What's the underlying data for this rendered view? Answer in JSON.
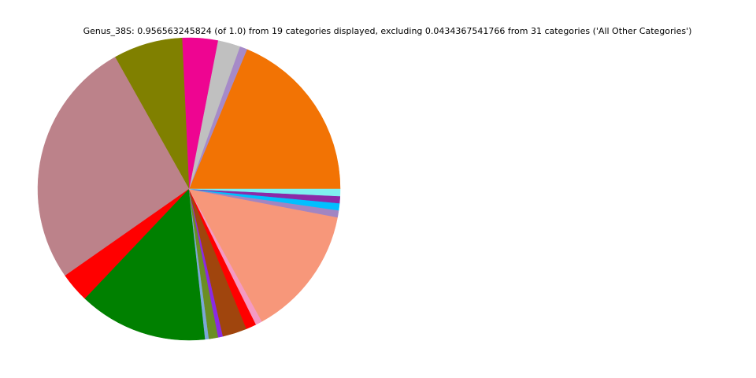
{
  "chart_data": {
    "type": "pie",
    "title": "Genus_38S: 0.956563245824 (of 1.0) from 19 categories displayed, excluding 0.0434367541766 from 31 categories ('All Other Categories')",
    "values": [
      18.75,
      0.8,
      2.4,
      3.8,
      7.4,
      26.6,
      3.2,
      13.8,
      0.4,
      1.0,
      0.5,
      2.6,
      1.1,
      0.7,
      14.0,
      0.75,
      0.75,
      0.75,
      0.75
    ],
    "colors": [
      "#f27304",
      "#a68ac8",
      "#c0c0c0",
      "#ee0591",
      "#808000",
      "#bc828a",
      "#ff0000",
      "#008000",
      "#7ba7d8",
      "#6b8e23",
      "#8a2be2",
      "#a0450d",
      "#ff0000",
      "#f49ac2",
      "#f7977a",
      "#a285c2",
      "#00bfff",
      "#8b2aa8",
      "#7ff0f0"
    ]
  }
}
